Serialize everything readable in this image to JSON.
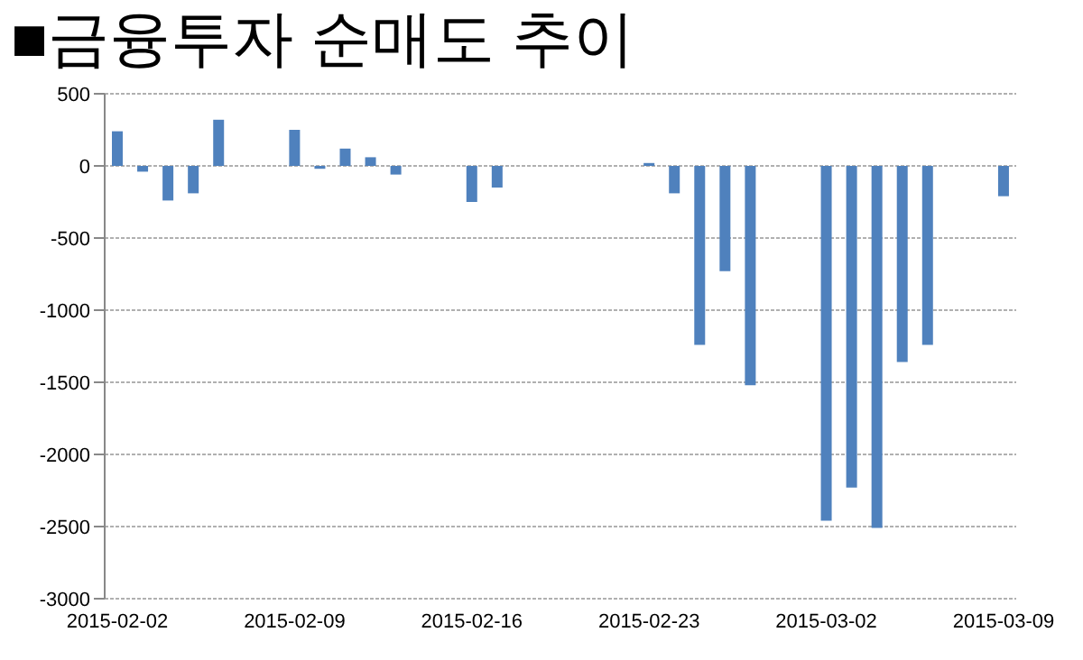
{
  "chart_data": {
    "type": "bar",
    "title": "■금융투자 순매도 추이",
    "x": [
      "2015-02-02",
      "2015-02-03",
      "2015-02-04",
      "2015-02-05",
      "2015-02-06",
      "2015-02-09",
      "2015-02-10",
      "2015-02-11",
      "2015-02-12",
      "2015-02-13",
      "2015-02-16",
      "2015-02-17",
      "2015-02-23",
      "2015-02-24",
      "2015-02-25",
      "2015-02-26",
      "2015-02-27",
      "2015-03-02",
      "2015-03-03",
      "2015-03-04",
      "2015-03-05",
      "2015-03-06",
      "2015-03-09"
    ],
    "values": [
      240,
      -40,
      -240,
      -190,
      320,
      250,
      -20,
      120,
      60,
      -60,
      -250,
      -150,
      20,
      -190,
      -1240,
      -730,
      -1520,
      -2460,
      -2230,
      -2510,
      -1360,
      -1240,
      -210
    ],
    "color": "#4f81bd",
    "xlim": [
      "2015-02-01T12:00",
      "2015-03-09T12:00"
    ],
    "xticks": [
      "2015-02-02",
      "2015-02-09",
      "2015-02-16",
      "2015-02-23",
      "2015-03-02",
      "2015-03-09"
    ],
    "ylim": [
      -3000,
      500
    ],
    "yticks": [
      -3000,
      -2500,
      -2000,
      -1500,
      -1000,
      -500,
      0,
      500
    ],
    "grid": "y"
  }
}
